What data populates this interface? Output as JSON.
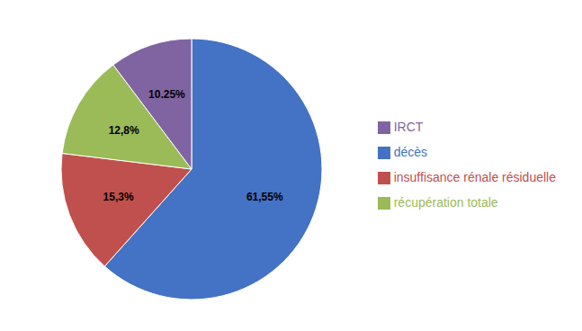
{
  "chart_data": {
    "type": "pie",
    "categories": [
      "décès",
      "insuffisance rénale résiduelle",
      "récupération totale",
      "IRCT"
    ],
    "values": [
      61.55,
      15.3,
      12.8,
      10.25
    ],
    "value_labels": [
      "61,55%",
      "15,3%",
      "12,8%",
      "10.25%"
    ],
    "colors": [
      "#4472C4",
      "#C0504D",
      "#9BBB59",
      "#8064A2"
    ],
    "data_labels": true,
    "legend": "right"
  }
}
